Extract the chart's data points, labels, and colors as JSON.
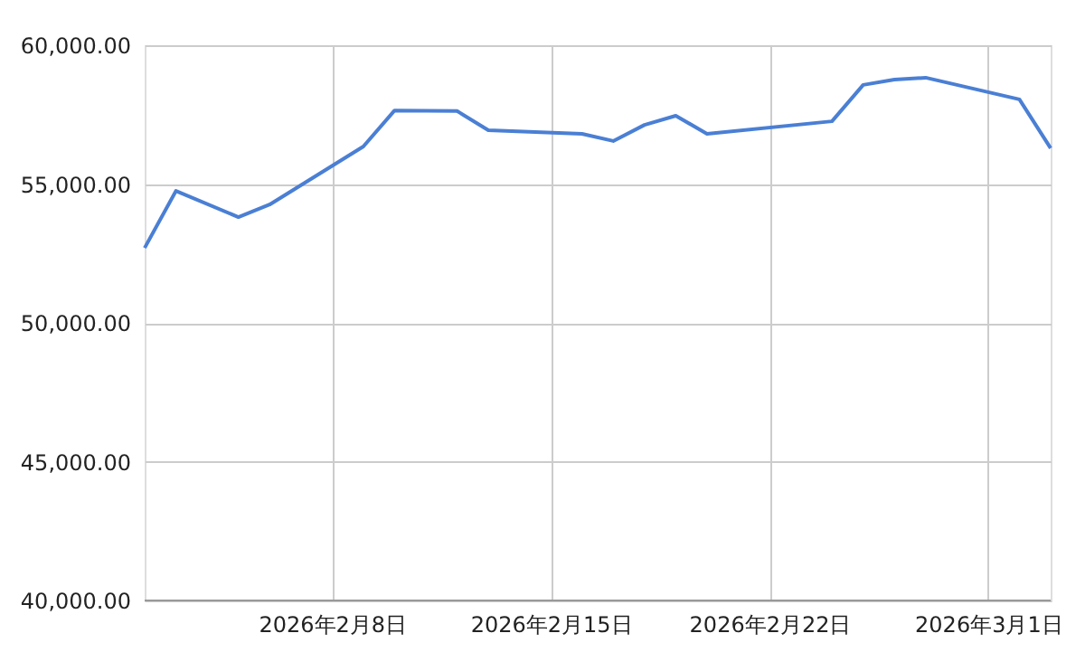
{
  "chart_data": {
    "type": "line",
    "x": [
      "2026-02-02",
      "2026-02-03",
      "2026-02-05",
      "2026-02-06",
      "2026-02-09",
      "2026-02-10",
      "2026-02-12",
      "2026-02-13",
      "2026-02-16",
      "2026-02-17",
      "2026-02-18",
      "2026-02-19",
      "2026-02-20",
      "2026-02-24",
      "2026-02-25",
      "2026-02-26",
      "2026-02-27",
      "2026-03-02",
      "2026-03-03"
    ],
    "series": [
      {
        "color": "#4a7fd4",
        "values": [
          52700,
          54750,
          53810,
          54260,
          56350,
          57650,
          57630,
          56940,
          56810,
          56550,
          57130,
          57460,
          56810,
          57260,
          58570,
          58760,
          58830,
          58050,
          56290
        ]
      }
    ],
    "xlim": [
      "2026-02-02",
      "2026-03-03"
    ],
    "xticks": [
      {
        "value": "2026-02-08",
        "label": "2026年2月8日"
      },
      {
        "value": "2026-02-15",
        "label": "2026年2月15日"
      },
      {
        "value": "2026-02-22",
        "label": "2026年2月22日"
      },
      {
        "value": "2026-03-01",
        "label": "2026年3月1日"
      }
    ],
    "ylim": [
      40000,
      60000
    ],
    "yticks": [
      {
        "value": 40000,
        "label": "40,000.00"
      },
      {
        "value": 45000,
        "label": "45,000.00"
      },
      {
        "value": 50000,
        "label": "50,000.00"
      },
      {
        "value": 55000,
        "label": "55,000.00"
      },
      {
        "value": 60000,
        "label": "60,000.00"
      }
    ],
    "grid": true,
    "marker": "none",
    "line_style": "solid",
    "legend": false
  }
}
